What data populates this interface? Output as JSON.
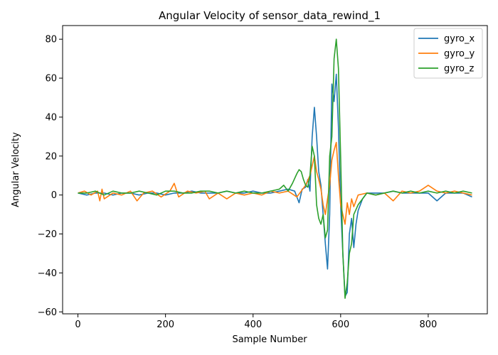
{
  "chart_data": {
    "type": "line",
    "title": "Angular Velocity of sensor_data_rewind_1",
    "xlabel": "Sample Number",
    "ylabel": "Angular Velocity",
    "xlim": [
      -35,
      935
    ],
    "ylim": [
      -61,
      87
    ],
    "xticks": [
      0,
      200,
      400,
      600,
      800
    ],
    "yticks": [
      -60,
      -40,
      -20,
      0,
      20,
      40,
      60,
      80
    ],
    "grid": false,
    "legend_position": "top-right",
    "series": [
      {
        "name": "gyro_x",
        "color": "#1f77b4",
        "points": [
          [
            0,
            1
          ],
          [
            20,
            0
          ],
          [
            40,
            1
          ],
          [
            60,
            1
          ],
          [
            80,
            0
          ],
          [
            100,
            1
          ],
          [
            120,
            1
          ],
          [
            140,
            0
          ],
          [
            160,
            1
          ],
          [
            180,
            1
          ],
          [
            200,
            0
          ],
          [
            220,
            1
          ],
          [
            240,
            1
          ],
          [
            260,
            2
          ],
          [
            280,
            1
          ],
          [
            300,
            1
          ],
          [
            320,
            1
          ],
          [
            340,
            2
          ],
          [
            360,
            1
          ],
          [
            380,
            1
          ],
          [
            400,
            2
          ],
          [
            420,
            1
          ],
          [
            440,
            1
          ],
          [
            460,
            2
          ],
          [
            480,
            3
          ],
          [
            495,
            2
          ],
          [
            505,
            -4
          ],
          [
            512,
            3
          ],
          [
            520,
            4
          ],
          [
            525,
            8
          ],
          [
            530,
            2
          ],
          [
            535,
            30
          ],
          [
            540,
            45
          ],
          [
            545,
            30
          ],
          [
            550,
            12
          ],
          [
            555,
            5
          ],
          [
            560,
            -10
          ],
          [
            565,
            -25
          ],
          [
            570,
            -38
          ],
          [
            575,
            -10
          ],
          [
            580,
            57
          ],
          [
            585,
            48
          ],
          [
            590,
            62
          ],
          [
            595,
            35
          ],
          [
            600,
            -5
          ],
          [
            605,
            -30
          ],
          [
            610,
            -52
          ],
          [
            615,
            -50
          ],
          [
            620,
            -20
          ],
          [
            625,
            -12
          ],
          [
            630,
            -27
          ],
          [
            635,
            -15
          ],
          [
            640,
            -8
          ],
          [
            650,
            -2
          ],
          [
            660,
            1
          ],
          [
            680,
            1
          ],
          [
            700,
            1
          ],
          [
            720,
            2
          ],
          [
            740,
            1
          ],
          [
            760,
            1
          ],
          [
            780,
            1
          ],
          [
            800,
            1
          ],
          [
            820,
            -3
          ],
          [
            840,
            1
          ],
          [
            860,
            1
          ],
          [
            880,
            1
          ],
          [
            900,
            -1
          ]
        ]
      },
      {
        "name": "gyro_y",
        "color": "#ff7f0e",
        "points": [
          [
            0,
            1
          ],
          [
            15,
            2
          ],
          [
            30,
            0
          ],
          [
            45,
            2
          ],
          [
            50,
            -3
          ],
          [
            55,
            3
          ],
          [
            60,
            -2
          ],
          [
            80,
            1
          ],
          [
            100,
            0
          ],
          [
            120,
            2
          ],
          [
            135,
            -3
          ],
          [
            150,
            1
          ],
          [
            170,
            2
          ],
          [
            190,
            -1
          ],
          [
            210,
            2
          ],
          [
            220,
            6
          ],
          [
            230,
            -1
          ],
          [
            250,
            2
          ],
          [
            270,
            1
          ],
          [
            290,
            2
          ],
          [
            300,
            -2
          ],
          [
            320,
            1
          ],
          [
            340,
            -2
          ],
          [
            360,
            1
          ],
          [
            380,
            0
          ],
          [
            400,
            1
          ],
          [
            420,
            0
          ],
          [
            440,
            2
          ],
          [
            460,
            1
          ],
          [
            480,
            2
          ],
          [
            500,
            -1
          ],
          [
            510,
            2
          ],
          [
            520,
            5
          ],
          [
            530,
            10
          ],
          [
            540,
            20
          ],
          [
            545,
            12
          ],
          [
            550,
            8
          ],
          [
            555,
            3
          ],
          [
            560,
            -5
          ],
          [
            565,
            -10
          ],
          [
            570,
            -2
          ],
          [
            575,
            5
          ],
          [
            580,
            18
          ],
          [
            585,
            23
          ],
          [
            590,
            27
          ],
          [
            595,
            10
          ],
          [
            600,
            -5
          ],
          [
            610,
            -15
          ],
          [
            615,
            -4
          ],
          [
            620,
            -10
          ],
          [
            625,
            -2
          ],
          [
            630,
            -6
          ],
          [
            640,
            0
          ],
          [
            660,
            1
          ],
          [
            680,
            0
          ],
          [
            700,
            1
          ],
          [
            720,
            -3
          ],
          [
            740,
            2
          ],
          [
            760,
            1
          ],
          [
            780,
            2
          ],
          [
            800,
            5
          ],
          [
            820,
            2
          ],
          [
            840,
            1
          ],
          [
            860,
            2
          ],
          [
            880,
            1
          ],
          [
            900,
            0
          ]
        ]
      },
      {
        "name": "gyro_z",
        "color": "#2ca02c",
        "points": [
          [
            0,
            1
          ],
          [
            20,
            1
          ],
          [
            40,
            2
          ],
          [
            60,
            0
          ],
          [
            80,
            2
          ],
          [
            100,
            1
          ],
          [
            120,
            1
          ],
          [
            140,
            2
          ],
          [
            160,
            1
          ],
          [
            180,
            0
          ],
          [
            200,
            2
          ],
          [
            220,
            2
          ],
          [
            240,
            1
          ],
          [
            260,
            1
          ],
          [
            280,
            2
          ],
          [
            300,
            2
          ],
          [
            320,
            1
          ],
          [
            340,
            2
          ],
          [
            360,
            1
          ],
          [
            380,
            2
          ],
          [
            400,
            1
          ],
          [
            420,
            1
          ],
          [
            440,
            2
          ],
          [
            460,
            3
          ],
          [
            470,
            5
          ],
          [
            480,
            2
          ],
          [
            490,
            6
          ],
          [
            500,
            11
          ],
          [
            505,
            13
          ],
          [
            510,
            12
          ],
          [
            515,
            8
          ],
          [
            520,
            5
          ],
          [
            525,
            4
          ],
          [
            530,
            10
          ],
          [
            535,
            25
          ],
          [
            540,
            20
          ],
          [
            545,
            -5
          ],
          [
            550,
            -12
          ],
          [
            555,
            -15
          ],
          [
            560,
            -10
          ],
          [
            565,
            -22
          ],
          [
            570,
            -18
          ],
          [
            575,
            20
          ],
          [
            580,
            30
          ],
          [
            585,
            70
          ],
          [
            590,
            80
          ],
          [
            595,
            65
          ],
          [
            600,
            20
          ],
          [
            605,
            -30
          ],
          [
            610,
            -53
          ],
          [
            615,
            -45
          ],
          [
            620,
            -30
          ],
          [
            625,
            -25
          ],
          [
            630,
            -10
          ],
          [
            640,
            -5
          ],
          [
            660,
            1
          ],
          [
            680,
            0
          ],
          [
            700,
            1
          ],
          [
            720,
            2
          ],
          [
            740,
            1
          ],
          [
            760,
            2
          ],
          [
            780,
            1
          ],
          [
            800,
            2
          ],
          [
            820,
            1
          ],
          [
            840,
            2
          ],
          [
            860,
            1
          ],
          [
            880,
            2
          ],
          [
            900,
            1
          ]
        ]
      }
    ]
  }
}
